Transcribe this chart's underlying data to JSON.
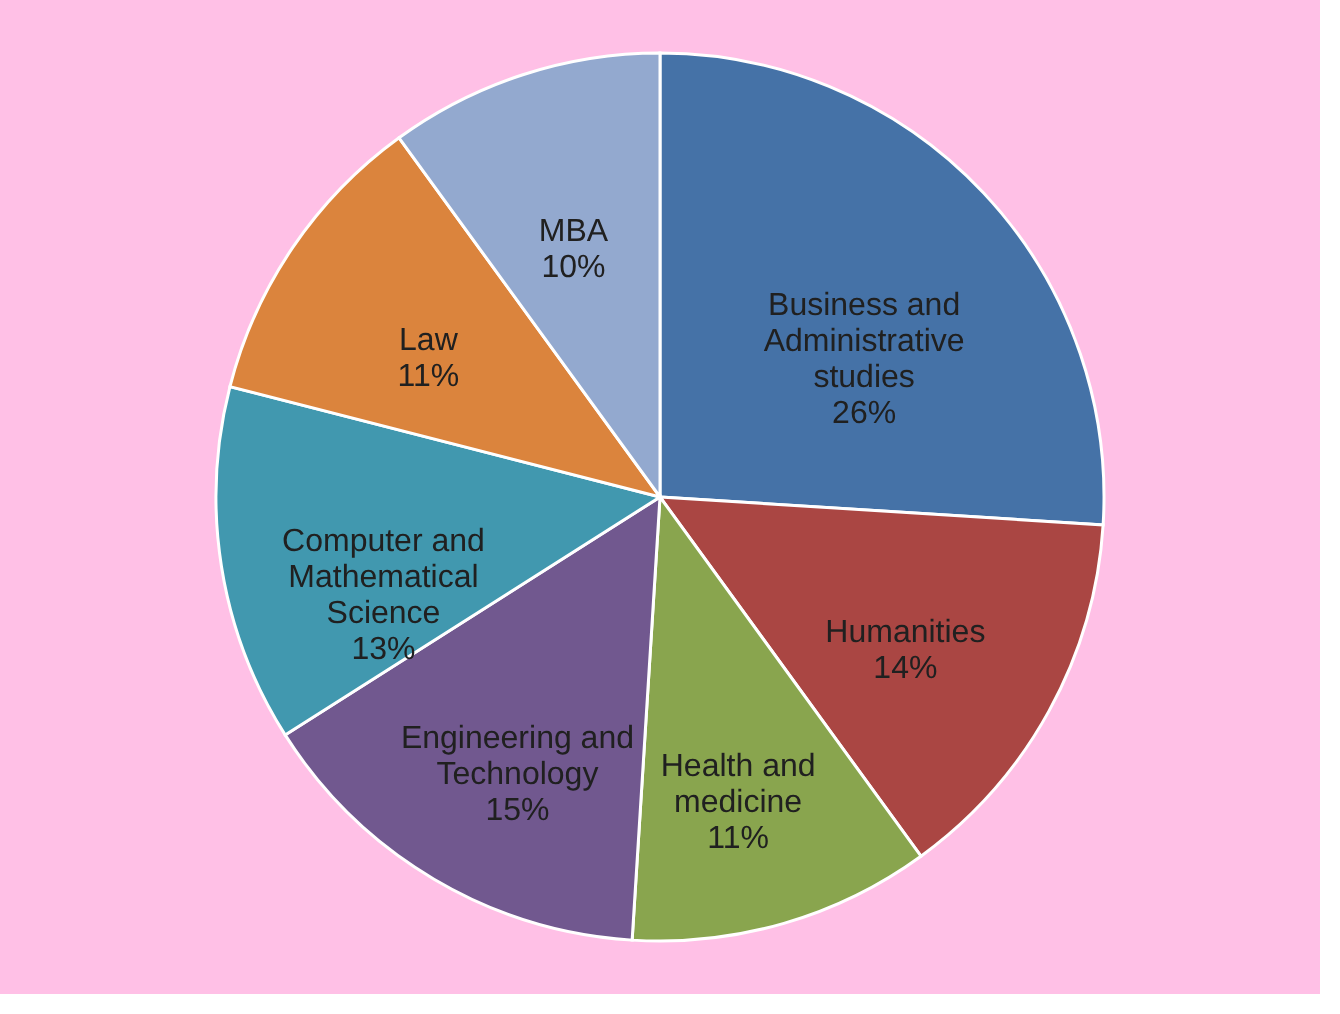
{
  "chart_data": {
    "type": "pie",
    "categories": [
      "Business and Administrative studies",
      "Humanities",
      "Health and medicine",
      "Engineering and Technology",
      "Computer and Mathematical Science",
      "Law",
      "MBA"
    ],
    "values": [
      26,
      14,
      11,
      15,
      13,
      11,
      10
    ],
    "value_labels": [
      "26%",
      "14%",
      "11%",
      "15%",
      "13%",
      "11%",
      "10%"
    ],
    "colors": [
      "#4572a7",
      "#aa4643",
      "#89a54e",
      "#71588f",
      "#4198af",
      "#db843d",
      "#93a9cf"
    ],
    "legend": false
  }
}
